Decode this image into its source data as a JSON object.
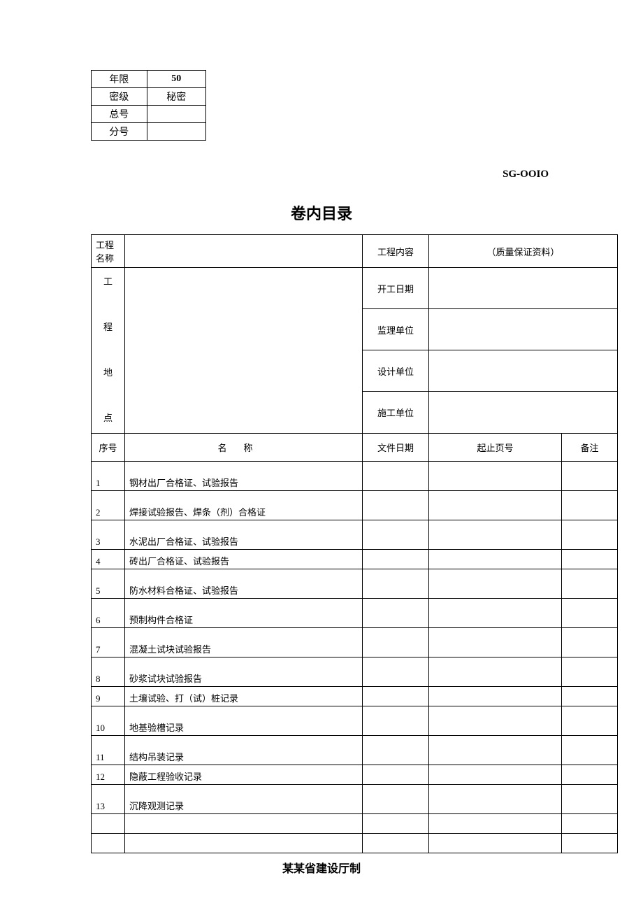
{
  "small_table": {
    "rows": [
      {
        "label": "年限",
        "value": "50"
      },
      {
        "label": "密级",
        "value": "秘密"
      },
      {
        "label": "总号",
        "value": ""
      },
      {
        "label": "分号",
        "value": ""
      }
    ]
  },
  "sg_code": "SG-OOIO",
  "title": "卷内目录",
  "header": {
    "project_name_label": "工程名称",
    "project_name_value": "",
    "project_content_label": "工程内容",
    "project_content_value": "（质量保证资料）",
    "project_location_label": "工\n\n程\n\n地\n\n点",
    "project_location_value": "",
    "start_date_label": "开工日期",
    "start_date_value": "",
    "supervisor_label": "监理单位",
    "supervisor_value": "",
    "designer_label": "设计单位",
    "designer_value": "",
    "constructor_label": "施工单位",
    "constructor_value": ""
  },
  "columns": {
    "seq": "序号",
    "name": "名称",
    "date": "文件日期",
    "pages": "起止页号",
    "notes": "备注"
  },
  "items": [
    {
      "seq": "1",
      "name": "钢材出厂合格证、试验报告",
      "date": "",
      "pages": "",
      "notes": ""
    },
    {
      "seq": "2",
      "name": "焊接试验报告、焊条（剂）合格证",
      "date": "",
      "pages": "",
      "notes": ""
    },
    {
      "seq": "3",
      "name": "水泥出厂合格证、试验报告",
      "date": "",
      "pages": "",
      "notes": ""
    },
    {
      "seq": "4",
      "name": "砖出厂合格证、试验报告",
      "date": "",
      "pages": "",
      "notes": "",
      "short": true
    },
    {
      "seq": "5",
      "name": "防水材料合格证、试验报告",
      "date": "",
      "pages": "",
      "notes": ""
    },
    {
      "seq": "6",
      "name": "预制构件合格证",
      "date": "",
      "pages": "",
      "notes": ""
    },
    {
      "seq": "7",
      "name": "混凝土试块试验报告",
      "date": "",
      "pages": "",
      "notes": ""
    },
    {
      "seq": "8",
      "name": "砂浆试块试验报告",
      "date": "",
      "pages": "",
      "notes": ""
    },
    {
      "seq": "9",
      "name": "土壤试验、打（试）桩记录",
      "date": "",
      "pages": "",
      "notes": "",
      "short": true
    },
    {
      "seq": "10",
      "name": "地基验槽记录",
      "date": "",
      "pages": "",
      "notes": ""
    },
    {
      "seq": "11",
      "name": "结构吊装记录",
      "date": "",
      "pages": "",
      "notes": ""
    },
    {
      "seq": "12",
      "name": "隐蔽工程验收记录",
      "date": "",
      "pages": "",
      "notes": "",
      "short": true
    },
    {
      "seq": "13",
      "name": "沉降观测记录",
      "date": "",
      "pages": "",
      "notes": ""
    },
    {
      "seq": "",
      "name": "",
      "date": "",
      "pages": "",
      "notes": "",
      "short": true
    },
    {
      "seq": "",
      "name": "",
      "date": "",
      "pages": "",
      "notes": "",
      "short": true
    }
  ],
  "footer": "某某省建设厅制"
}
